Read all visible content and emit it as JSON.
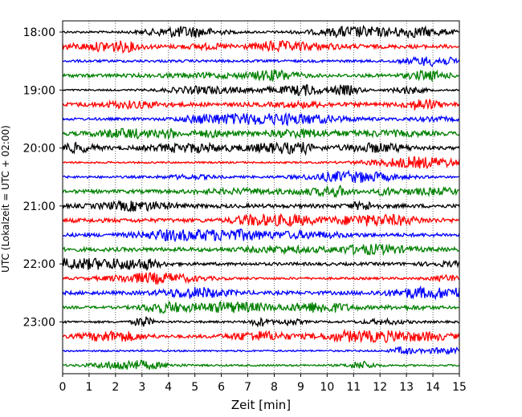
{
  "chart_data": {
    "type": "line",
    "title": "",
    "xlabel": "Zeit  [min]",
    "ylabel": "UTC (Lokalzeit = UTC + 02:00)",
    "xlim": [
      0,
      15
    ],
    "x_ticks": [
      "0",
      "1",
      "2",
      "3",
      "4",
      "5",
      "6",
      "7",
      "8",
      "9",
      "10",
      "11",
      "12",
      "13",
      "14",
      "15"
    ],
    "y_tick_labels": [
      "18:00",
      "19:00",
      "20:00",
      "21:00",
      "22:00",
      "23:00"
    ],
    "x_grid": "dotted",
    "trace_interval_min": 15,
    "trace_colors": [
      "#000000",
      "#ff0000",
      "#0000ff",
      "#008000"
    ],
    "trace_count": 24,
    "trace_start_times": [
      "18:00",
      "18:15",
      "18:30",
      "18:45",
      "19:00",
      "19:15",
      "19:30",
      "19:45",
      "20:00",
      "20:15",
      "20:30",
      "20:45",
      "21:00",
      "21:15",
      "21:30",
      "21:45",
      "22:00",
      "22:15",
      "22:30",
      "22:45",
      "23:00",
      "23:15",
      "23:30",
      "23:45"
    ]
  }
}
